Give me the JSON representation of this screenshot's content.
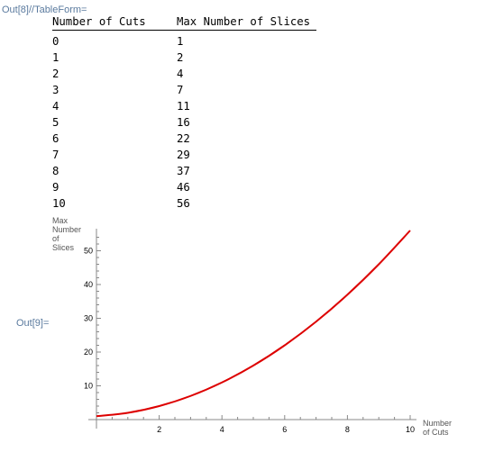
{
  "cells": {
    "out8_label": "Out[8]//TableForm=",
    "out9_label": "Out[9]="
  },
  "table": {
    "headers": [
      "Number of Cuts",
      "Max Number of Slices"
    ],
    "rows": [
      [
        "0",
        "1"
      ],
      [
        "1",
        "2"
      ],
      [
        "2",
        "4"
      ],
      [
        "3",
        "7"
      ],
      [
        "4",
        "11"
      ],
      [
        "5",
        "16"
      ],
      [
        "6",
        "22"
      ],
      [
        "7",
        "29"
      ],
      [
        "8",
        "37"
      ],
      [
        "9",
        "46"
      ],
      [
        "10",
        "56"
      ]
    ]
  },
  "chart_data": {
    "type": "line",
    "xlabel": "Number of Cuts",
    "ylabel": "Max Number of Slices",
    "x_ticks": [
      2,
      4,
      6,
      8,
      10
    ],
    "y_ticks": [
      10,
      20,
      30,
      40,
      50
    ],
    "xlim": [
      0,
      10
    ],
    "ylim": [
      0,
      56
    ],
    "grid": false,
    "line_color": "#dd0000",
    "series": [
      {
        "x": [
          0,
          1,
          2,
          3,
          4,
          5,
          6,
          7,
          8,
          9,
          10
        ],
        "y": [
          1,
          2,
          4,
          7,
          11,
          16,
          22,
          29,
          37,
          46,
          56
        ]
      }
    ]
  }
}
